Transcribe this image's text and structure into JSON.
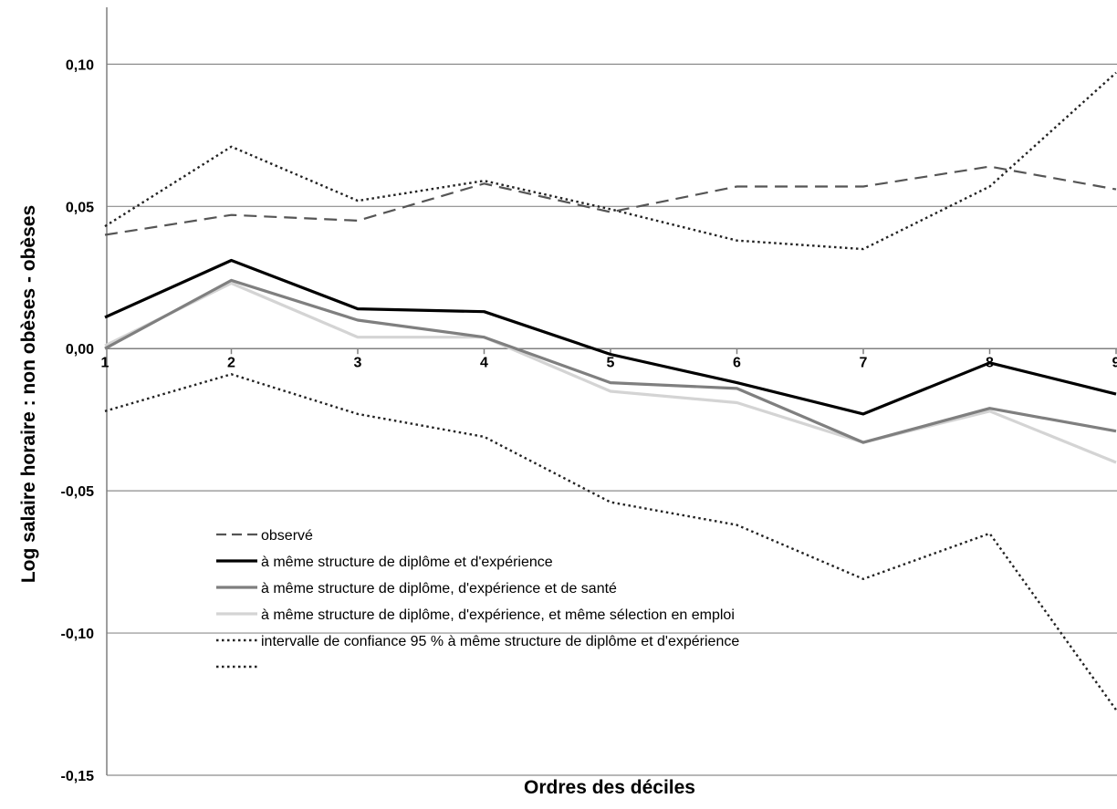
{
  "chart_data": {
    "type": "line",
    "title": "",
    "xlabel": "Ordres des déciles",
    "ylabel": "Log salaire horaire : non obèses - obèses",
    "x": [
      "1",
      "2",
      "3",
      "4",
      "5",
      "6",
      "7",
      "8",
      "9"
    ],
    "ylim": [
      -0.15,
      0.12
    ],
    "yticks": [
      0.1,
      0.05,
      0.0,
      -0.05,
      -0.1,
      -0.15
    ],
    "ytick_labels": [
      "0,10",
      "0,05",
      "0,00",
      "-0,05",
      "-0,10",
      "-0,15"
    ],
    "grid": true,
    "legend_position": "lower-left",
    "series": [
      {
        "name": "observé",
        "style": "dashed",
        "color": "#555555",
        "values": [
          0.04,
          0.047,
          0.045,
          0.058,
          0.048,
          0.057,
          0.057,
          0.064,
          0.056
        ]
      },
      {
        "name": "à même structure de diplôme et d'expérience",
        "style": "solid",
        "color": "#000000",
        "values": [
          0.011,
          0.031,
          0.014,
          0.013,
          -0.002,
          -0.012,
          -0.023,
          -0.005,
          -0.016
        ]
      },
      {
        "name": "à même structure de diplôme, d'expérience et de santé",
        "style": "solid",
        "color": "#7f7f7f",
        "values": [
          0.0,
          0.024,
          0.01,
          0.004,
          -0.012,
          -0.014,
          -0.033,
          -0.021,
          -0.029
        ]
      },
      {
        "name": "à même structure de diplôme, d'expérience, et même sélection en emploi",
        "style": "solid",
        "color": "#d4d4d4",
        "values": [
          0.001,
          0.023,
          0.004,
          0.004,
          -0.015,
          -0.019,
          -0.033,
          -0.022,
          -0.04
        ]
      },
      {
        "name": "intervalle de confiance 95 % à même structure de diplôme et d'expérience",
        "style": "dotted",
        "color": "#222222",
        "values": [
          0.043,
          0.071,
          0.052,
          0.059,
          0.049,
          0.038,
          0.035,
          0.057,
          0.097
        ]
      },
      {
        "name": "",
        "style": "dotted",
        "color": "#222222",
        "values": [
          -0.022,
          -0.009,
          -0.023,
          -0.031,
          -0.054,
          -0.062,
          -0.081,
          -0.065,
          -0.127
        ]
      }
    ]
  }
}
